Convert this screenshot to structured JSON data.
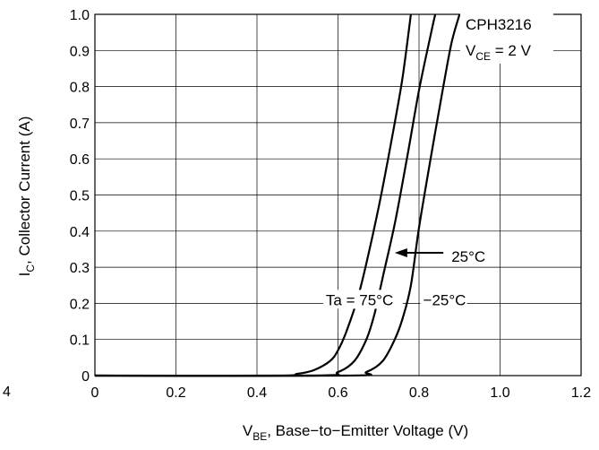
{
  "chart_data": {
    "type": "line",
    "title": "",
    "device": "CPH3216",
    "condition": {
      "prefix": "V",
      "sub": "CE",
      "suffix": " = 2 V"
    },
    "xlabel": {
      "prefix": "V",
      "sub": "BE",
      "suffix": ", Base−to−Emitter Voltage (V)"
    },
    "ylabel": {
      "prefix": "I",
      "sub": "C",
      "suffix": ", Collector Current (A)"
    },
    "xlim": [
      0,
      1.2
    ],
    "ylim": [
      0,
      1.0
    ],
    "x_ticks": [
      0,
      0.2,
      0.4,
      0.6,
      0.8,
      1.0,
      1.2
    ],
    "x_tick_labels": [
      "0",
      "0.2",
      "0.4",
      "0.6",
      "0.8",
      "1.0",
      "1.2"
    ],
    "y_ticks": [
      0,
      0.1,
      0.2,
      0.3,
      0.4,
      0.5,
      0.6,
      0.7,
      0.8,
      0.9,
      1.0
    ],
    "y_tick_labels": [
      "0",
      "0.1",
      "0.2",
      "0.3",
      "0.4",
      "0.5",
      "0.6",
      "0.7",
      "0.8",
      "0.9",
      "1.0"
    ],
    "stray_label": "4",
    "grid": true,
    "line_color": "#000000",
    "series": [
      {
        "name": "Ta = 75°C",
        "x": [
          0.0,
          0.44,
          0.5,
          0.54,
          0.58,
          0.6,
          0.62,
          0.65,
          0.68,
          0.71,
          0.74,
          0.76,
          0.78
        ],
        "y": [
          0.0,
          0.0,
          0.005,
          0.015,
          0.04,
          0.07,
          0.12,
          0.22,
          0.36,
          0.52,
          0.7,
          0.83,
          1.0
        ]
      },
      {
        "name": "25°C",
        "x": [
          0.0,
          0.54,
          0.6,
          0.64,
          0.67,
          0.69,
          0.71,
          0.74,
          0.77,
          0.8,
          0.83,
          0.84
        ],
        "y": [
          0.0,
          0.0,
          0.01,
          0.04,
          0.1,
          0.17,
          0.27,
          0.42,
          0.6,
          0.79,
          0.95,
          1.0
        ]
      },
      {
        "name": "−25°C",
        "x": [
          0.0,
          0.62,
          0.67,
          0.71,
          0.74,
          0.76,
          0.78,
          0.8,
          0.83,
          0.86,
          0.88,
          0.9
        ],
        "y": [
          0.0,
          0.0,
          0.01,
          0.04,
          0.1,
          0.16,
          0.25,
          0.41,
          0.61,
          0.8,
          0.92,
          1.0
        ]
      }
    ],
    "annotations": [
      {
        "text": "Ta = 75°C",
        "x": 0.57,
        "y": 0.2
      },
      {
        "text": "25°C",
        "x": 0.88,
        "y": 0.32
      },
      {
        "text": "−25°C",
        "x": 0.81,
        "y": 0.2
      }
    ],
    "arrow": {
      "from": [
        0.86,
        0.34
      ],
      "to": [
        0.74,
        0.34
      ]
    }
  }
}
